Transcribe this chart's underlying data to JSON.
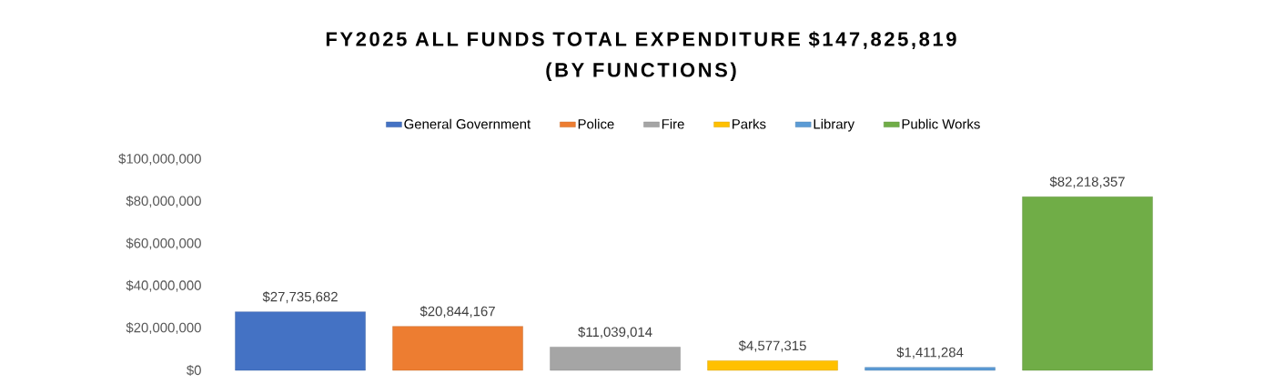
{
  "chart_data": {
    "type": "bar",
    "title": "FY2025 ALL FUNDS TOTAL EXPENDITURE $147,825,819\n(BY FUNCTIONS)",
    "categories": [
      null
    ],
    "series": [
      {
        "name": "General Government",
        "color": "#4472c4",
        "values": [
          27735682
        ],
        "value_labels": [
          "$27,735,682"
        ]
      },
      {
        "name": "Police",
        "color": "#ed7d31",
        "values": [
          20844167
        ],
        "value_labels": [
          "$20,844,167"
        ]
      },
      {
        "name": "Fire",
        "color": "#a5a5a5",
        "values": [
          11039014
        ],
        "value_labels": [
          "$11,039,014"
        ]
      },
      {
        "name": "Parks",
        "color": "#ffc000",
        "values": [
          4577315
        ],
        "value_labels": [
          "$4,577,315"
        ]
      },
      {
        "name": "Library",
        "color": "#5b9bd5",
        "values": [
          1411284
        ],
        "value_labels": [
          "$1,411,284"
        ]
      },
      {
        "name": "Public Works",
        "color": "#70ad47",
        "values": [
          82218357
        ],
        "value_labels": [
          "$82,218,357"
        ]
      }
    ],
    "ylim": [
      0,
      100000000
    ],
    "yticks": [
      {
        "value": 0,
        "label": "$0"
      },
      {
        "value": 20000000,
        "label": "$20,000,000"
      },
      {
        "value": 40000000,
        "label": "$40,000,000"
      },
      {
        "value": 60000000,
        "label": "$60,000,000"
      },
      {
        "value": 80000000,
        "label": "$80,000,000"
      },
      {
        "value": 100000000,
        "label": "$100,000,000"
      }
    ],
    "grid": false,
    "legend": "top"
  }
}
